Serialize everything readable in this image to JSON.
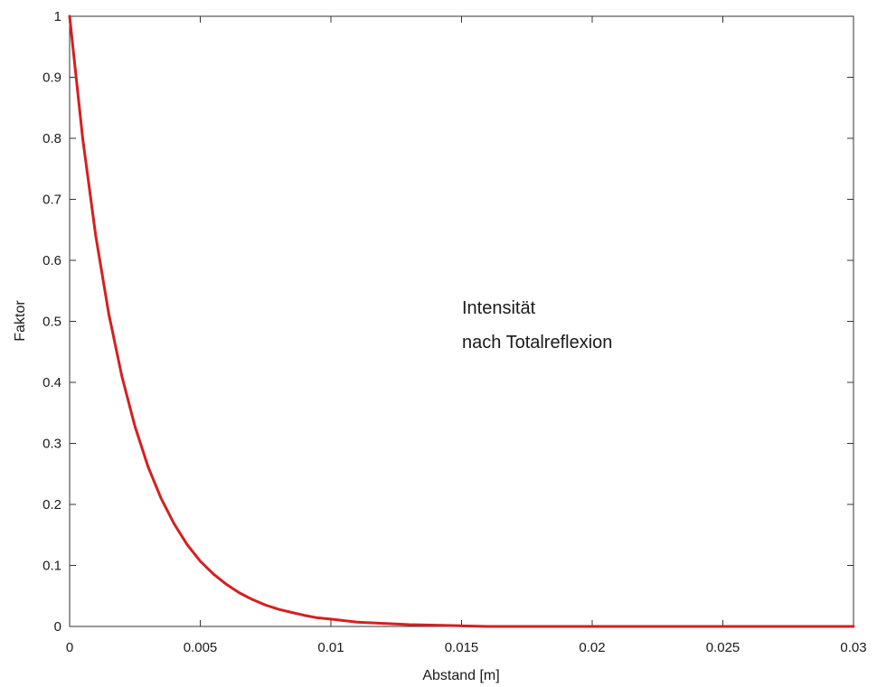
{
  "chart_data": {
    "type": "line",
    "title": "",
    "xlabel": "Abstand [m]",
    "ylabel": "Faktor",
    "xlim": [
      0,
      0.03
    ],
    "ylim": [
      0,
      1
    ],
    "grid": false,
    "x_ticks": [
      "0",
      "0.005",
      "0.01",
      "0.015",
      "0.02",
      "0.025",
      "0.03"
    ],
    "y_ticks": [
      "0",
      "0.1",
      "0.2",
      "0.3",
      "0.4",
      "0.5",
      "0.6",
      "0.7",
      "0.8",
      "0.9",
      "1"
    ],
    "annotation": [
      "Intensität",
      "nach Totalreflexion"
    ],
    "series": [
      {
        "color": "#d42020",
        "x": [
          0,
          0.0005,
          0.001,
          0.0015,
          0.002,
          0.0025,
          0.003,
          0.0035,
          0.004,
          0.0045,
          0.005,
          0.0055,
          0.006,
          0.0065,
          0.007,
          0.0075,
          0.008,
          0.0085,
          0.009,
          0.0095,
          0.01,
          0.011,
          0.012,
          0.013,
          0.014,
          0.015,
          0.016,
          0.018,
          0.02,
          0.022,
          0.025,
          0.028,
          0.03
        ],
        "y": [
          1.0,
          0.8,
          0.64,
          0.512,
          0.41,
          0.328,
          0.262,
          0.21,
          0.168,
          0.134,
          0.107,
          0.086,
          0.069,
          0.055,
          0.044,
          0.035,
          0.028,
          0.023,
          0.018,
          0.014,
          0.012,
          0.007,
          0.005,
          0.003,
          0.002,
          0.001,
          0.0,
          0.0,
          0.0,
          0.0,
          0.0,
          0.0,
          0.0
        ]
      }
    ]
  }
}
